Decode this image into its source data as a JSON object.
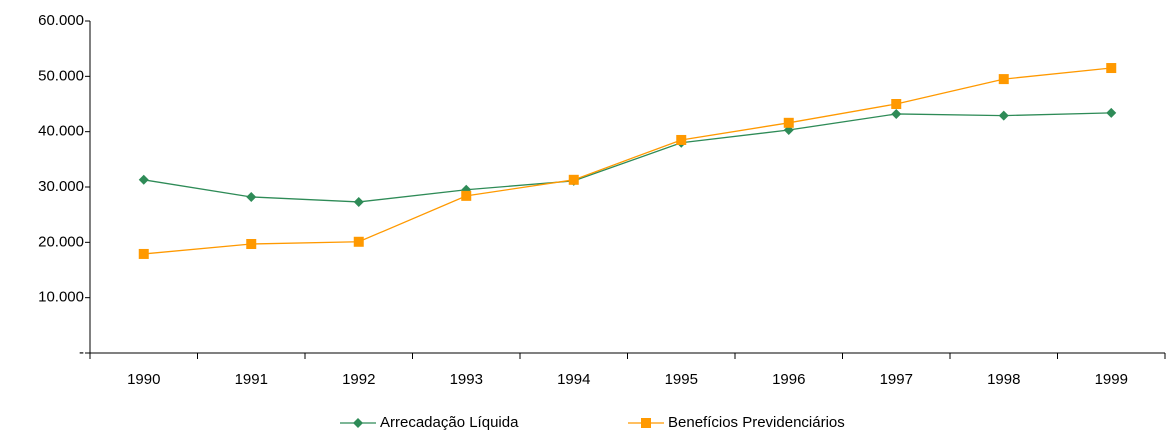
{
  "chart_data": {
    "type": "line",
    "categories": [
      "1990",
      "1991",
      "1992",
      "1993",
      "1994",
      "1995",
      "1996",
      "1997",
      "1998",
      "1999"
    ],
    "series": [
      {
        "name": "Arrecadação Líquida",
        "color": "#2e8b57",
        "marker": "diamond",
        "values": [
          31300,
          28200,
          27300,
          29500,
          31100,
          38000,
          40300,
          43200,
          42900,
          43400
        ]
      },
      {
        "name": "Benefícios Previdenciários",
        "color": "#ff9900",
        "marker": "square",
        "values": [
          17900,
          19700,
          20100,
          28400,
          31300,
          38500,
          41600,
          45000,
          49500,
          51500
        ]
      }
    ],
    "ylim": [
      0,
      60000
    ],
    "yticks": [
      {
        "value": 0,
        "label": "-"
      },
      {
        "value": 10000,
        "label": "10.000"
      },
      {
        "value": 20000,
        "label": "20.000"
      },
      {
        "value": 30000,
        "label": "30.000"
      },
      {
        "value": 40000,
        "label": "40.000"
      },
      {
        "value": 50000,
        "label": "50.000"
      },
      {
        "value": 60000,
        "label": "60.000"
      }
    ],
    "grid": false,
    "legend": "bottom"
  }
}
